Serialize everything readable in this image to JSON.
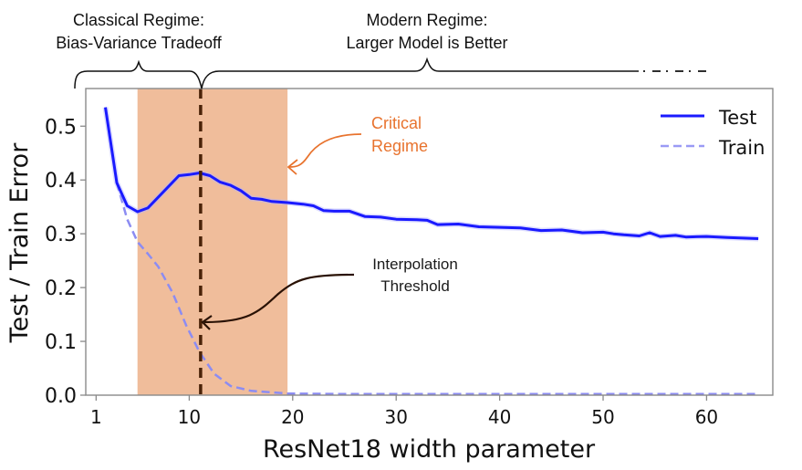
{
  "chart_data": {
    "type": "line",
    "title": "",
    "xlabel": "ResNet18 width parameter",
    "ylabel": "Test / Train Error",
    "xlim": [
      0,
      66.4
    ],
    "ylim": [
      0,
      0.57
    ],
    "x_ticks": [
      1,
      10,
      20,
      30,
      40,
      50,
      60
    ],
    "x_tick_labels": [
      "1",
      "10",
      "20",
      "30",
      "40",
      "50",
      "60"
    ],
    "y_ticks": [
      0.0,
      0.1,
      0.2,
      0.3,
      0.4,
      0.5
    ],
    "y_tick_labels": [
      "0.0",
      "0.1",
      "0.2",
      "0.3",
      "0.4",
      "0.5"
    ],
    "grid": false,
    "legend_position": "top-right",
    "series": [
      {
        "name": "Test",
        "style": "solid",
        "color": "#1a1aff",
        "x": [
          1.9,
          3,
          4,
          5,
          6,
          7.5,
          9,
          10,
          11,
          12,
          13,
          14,
          15,
          16,
          17,
          18,
          19.5,
          21,
          22,
          23,
          24,
          25.5,
          27,
          28.5,
          30,
          32,
          33,
          34,
          36,
          38,
          40,
          42,
          44,
          46,
          48,
          50,
          51,
          52,
          53.5,
          54.5,
          55.5,
          57,
          58,
          60,
          62,
          65
        ],
        "values": [
          0.535,
          0.395,
          0.352,
          0.341,
          0.348,
          0.378,
          0.408,
          0.41,
          0.413,
          0.408,
          0.396,
          0.39,
          0.38,
          0.366,
          0.364,
          0.36,
          0.358,
          0.355,
          0.352,
          0.343,
          0.342,
          0.342,
          0.332,
          0.331,
          0.327,
          0.326,
          0.325,
          0.317,
          0.318,
          0.313,
          0.312,
          0.311,
          0.306,
          0.307,
          0.302,
          0.303,
          0.3,
          0.298,
          0.296,
          0.302,
          0.295,
          0.297,
          0.294,
          0.295,
          0.293,
          0.291
        ]
      },
      {
        "name": "Train",
        "style": "dashed",
        "color": "#8c8cf2",
        "x": [
          3,
          4,
          5,
          6,
          7,
          8.4,
          9.7,
          11,
          12.4,
          14,
          16,
          19.5,
          25,
          35,
          45,
          55,
          65
        ],
        "values": [
          0.395,
          0.327,
          0.285,
          0.263,
          0.239,
          0.19,
          0.13,
          0.08,
          0.04,
          0.017,
          0.008,
          0.003,
          0.002,
          0.002,
          0.002,
          0.002,
          0.002
        ]
      }
    ],
    "shaded_region": {
      "label": "Critical Regime",
      "x_range": [
        5,
        19.5
      ],
      "color": "#f0bd9b"
    },
    "vertical_line": {
      "label": "Interpolation Threshold",
      "x": 11.1,
      "color": "#4a2208"
    },
    "annotations": [
      {
        "id": "critical",
        "lines": [
          "Critical",
          "Regime"
        ],
        "color": "#e8732e"
      },
      {
        "id": "interp",
        "lines": [
          "Interpolation",
          "Threshold"
        ],
        "color": "#1a1a1a"
      }
    ],
    "regimes": [
      {
        "lines": [
          "Classical Regime:",
          "Bias-Variance Tradeoff"
        ]
      },
      {
        "lines": [
          "Modern Regime:",
          "Larger Model is Better"
        ]
      }
    ]
  }
}
